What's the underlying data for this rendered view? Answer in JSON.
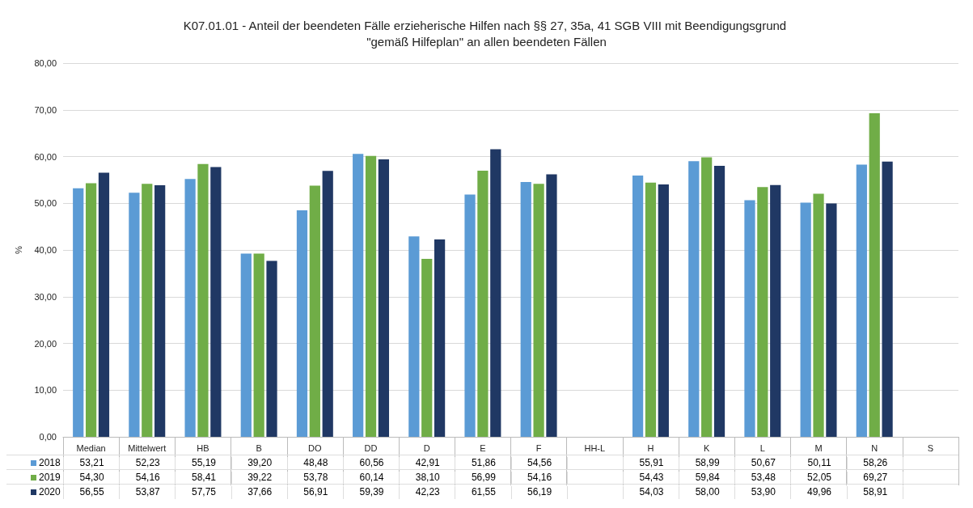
{
  "chart_data": {
    "type": "bar",
    "title": "K07.01.01 - Anteil der beendeten Fälle erzieherische Hilfen nach §§ 27, 35a, 41 SGB VIII mit Beendigungsgrund \"gemäß Hilfeplan\" an allen beendeten Fällen",
    "ylabel": "%",
    "categories": [
      "Median",
      "Mittelwert",
      "HB",
      "B",
      "DO",
      "DD",
      "D",
      "E",
      "F",
      "HH-L",
      "H",
      "K",
      "L",
      "M",
      "N",
      "S"
    ],
    "series": [
      {
        "name": "2018",
        "color": "#5b9bd5",
        "values": [
          53.21,
          52.23,
          55.19,
          39.2,
          48.48,
          60.56,
          42.91,
          51.86,
          54.56,
          null,
          55.91,
          58.99,
          50.67,
          50.11,
          58.26,
          null
        ],
        "value_labels": [
          "53,21",
          "52,23",
          "55,19",
          "39,20",
          "48,48",
          "60,56",
          "42,91",
          "51,86",
          "54,56",
          null,
          "55,91",
          "58,99",
          "50,67",
          "50,11",
          "58,26",
          null
        ]
      },
      {
        "name": "2019",
        "color": "#70ad47",
        "values": [
          54.3,
          54.16,
          58.41,
          39.22,
          53.78,
          60.14,
          38.1,
          56.99,
          54.16,
          null,
          54.43,
          59.84,
          53.48,
          52.05,
          69.27,
          null
        ],
        "value_labels": [
          "54,30",
          "54,16",
          "58,41",
          "39,22",
          "53,78",
          "60,14",
          "38,10",
          "56,99",
          "54,16",
          null,
          "54,43",
          "59,84",
          "53,48",
          "52,05",
          "69,27",
          null
        ]
      },
      {
        "name": "2020",
        "color": "#203864",
        "values": [
          56.55,
          53.87,
          57.75,
          37.66,
          56.91,
          59.39,
          42.23,
          61.55,
          56.19,
          null,
          54.03,
          58.0,
          53.9,
          49.96,
          58.91,
          null
        ],
        "value_labels": [
          "56,55",
          "53,87",
          "57,75",
          "37,66",
          "56,91",
          "59,39",
          "42,23",
          "61,55",
          "56,19",
          null,
          "54,03",
          "58,00",
          "53,90",
          "49,96",
          "58,91",
          null
        ]
      }
    ],
    "ylim": [
      0,
      80
    ],
    "yticks": [
      {
        "value": 0,
        "label": "0,00"
      },
      {
        "value": 10,
        "label": "10,00"
      },
      {
        "value": 20,
        "label": "20,00"
      },
      {
        "value": 30,
        "label": "30,00"
      },
      {
        "value": 40,
        "label": "40,00"
      },
      {
        "value": 50,
        "label": "50,00"
      },
      {
        "value": 60,
        "label": "60,00"
      },
      {
        "value": 70,
        "label": "70,00"
      },
      {
        "value": 80,
        "label": "80,00"
      }
    ],
    "grid": "y",
    "legend": "bottom left"
  }
}
